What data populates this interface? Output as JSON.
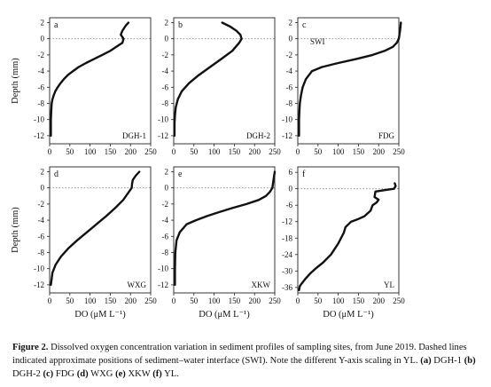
{
  "figure": {
    "ylabel": "Depth (mm)",
    "xlabel": "DO (μM L⁻¹)",
    "swi_label": "SWI"
  },
  "caption": {
    "lead": "Figure 2.",
    "text": "Dissolved oxygen concentration variation in sediment profiles of sampling sites, from June 2019. Dashed lines indicated approximate positions of sediment–water interface (SWI). Note the different Y-axis scaling in YL.",
    "items": [
      {
        "key": "(a)",
        "site": "DGH-1"
      },
      {
        "key": "(b)",
        "site": "DGH-2"
      },
      {
        "key": "(c)",
        "site": "FDG"
      },
      {
        "key": "(d)",
        "site": "WXG"
      },
      {
        "key": "(e)",
        "site": "XKW"
      },
      {
        "key": "(f)",
        "site": "YL"
      }
    ]
  },
  "chart_data": [
    {
      "type": "line",
      "panel": "a",
      "site": "DGH-1",
      "xlim": [
        0,
        250
      ],
      "ylim": [
        -13,
        2.6
      ],
      "xticks": [
        0,
        50,
        100,
        150,
        200,
        250
      ],
      "yticks": [
        2,
        0,
        -2,
        -4,
        -6,
        -8,
        -10,
        -12
      ],
      "swi_depth": 0,
      "x": [
        195,
        188,
        180,
        176,
        183,
        180,
        165,
        150,
        130,
        110,
        90,
        72,
        58,
        45,
        35,
        27,
        20,
        14,
        10,
        7,
        5,
        4,
        3,
        3
      ],
      "y": [
        2,
        1.6,
        1,
        0.5,
        0,
        -0.5,
        -1,
        -1.5,
        -2,
        -2.5,
        -3,
        -3.5,
        -4,
        -4.5,
        -5,
        -5.5,
        -6,
        -6.5,
        -7,
        -7.5,
        -8,
        -9,
        -10,
        -12
      ]
    },
    {
      "type": "line",
      "panel": "b",
      "site": "DGH-2",
      "xlim": [
        0,
        250
      ],
      "ylim": [
        -13,
        2.6
      ],
      "xticks": [
        0,
        50,
        100,
        150,
        200,
        250
      ],
      "yticks": [
        2,
        0,
        -2,
        -4,
        -6,
        -8,
        -10,
        -12
      ],
      "swi_depth": 0,
      "x": [
        120,
        140,
        155,
        165,
        168,
        162,
        145,
        118,
        90,
        62,
        38,
        20,
        10,
        5,
        3,
        2,
        2,
        2
      ],
      "y": [
        2,
        1.5,
        1,
        0.5,
        0,
        -0.5,
        -1.5,
        -2.5,
        -3.5,
        -4.5,
        -5.5,
        -6.5,
        -7.5,
        -8.5,
        -9.5,
        -10.5,
        -11.5,
        -12
      ]
    },
    {
      "type": "line",
      "panel": "c",
      "site": "FDG",
      "xlim": [
        0,
        250
      ],
      "ylim": [
        -13,
        2.6
      ],
      "xticks": [
        0,
        50,
        100,
        150,
        200,
        250
      ],
      "yticks": [
        2,
        0,
        -2,
        -4,
        -6,
        -8,
        -10,
        -12
      ],
      "swi_depth": 0,
      "x": [
        255,
        253,
        250,
        245,
        235,
        215,
        185,
        145,
        100,
        60,
        35,
        20,
        12,
        8,
        5,
        4,
        3,
        3
      ],
      "y": [
        2,
        1,
        0,
        -0.5,
        -1,
        -1.5,
        -2,
        -2.5,
        -3,
        -3.5,
        -4,
        -5,
        -6,
        -7,
        -8,
        -9,
        -10,
        -12
      ]
    },
    {
      "type": "line",
      "panel": "d",
      "site": "WXG",
      "xlim": [
        0,
        250
      ],
      "ylim": [
        -13,
        2.6
      ],
      "xticks": [
        0,
        50,
        100,
        150,
        200,
        250
      ],
      "yticks": [
        2,
        0,
        -2,
        -4,
        -6,
        -8,
        -10,
        -12
      ],
      "swi_depth": 0,
      "x": [
        222,
        213,
        206,
        204,
        203,
        196,
        182,
        162,
        140,
        116,
        92,
        68,
        46,
        28,
        15,
        7,
        3
      ],
      "y": [
        2,
        1.5,
        1,
        0.5,
        0,
        -0.5,
        -1.5,
        -2.5,
        -3.5,
        -4.5,
        -5.5,
        -6.5,
        -7.5,
        -8.5,
        -9.5,
        -10.5,
        -12
      ]
    },
    {
      "type": "line",
      "panel": "e",
      "site": "XKW",
      "xlim": [
        0,
        250
      ],
      "ylim": [
        -13,
        2.6
      ],
      "xticks": [
        0,
        50,
        100,
        150,
        200,
        250
      ],
      "yticks": [
        2,
        0,
        -2,
        -4,
        -6,
        -8,
        -10,
        -12
      ],
      "swi_depth": 0,
      "x": [
        250,
        247,
        244,
        238,
        228,
        210,
        180,
        145,
        112,
        82,
        55,
        32,
        15,
        7,
        4,
        3,
        3
      ],
      "y": [
        2,
        1,
        0,
        -0.5,
        -1,
        -1.5,
        -2,
        -2.5,
        -3,
        -3.5,
        -4,
        -4.5,
        -5.5,
        -6.5,
        -8,
        -10,
        -12
      ]
    },
    {
      "type": "line",
      "panel": "f",
      "site": "YL",
      "xlim": [
        0,
        250
      ],
      "ylim": [
        -38,
        8
      ],
      "xticks": [
        0,
        50,
        100,
        150,
        200,
        250
      ],
      "yticks": [
        6,
        0,
        -6,
        -12,
        -18,
        -24,
        -30,
        -36
      ],
      "swi_depth": 0,
      "x": [
        240,
        242,
        238,
        215,
        192,
        190,
        200,
        195,
        185,
        180,
        165,
        150,
        132,
        118,
        114,
        100,
        82,
        62,
        45,
        30,
        18,
        10,
        5,
        3
      ],
      "y": [
        2,
        1,
        0,
        -0.5,
        -1,
        -3,
        -4,
        -5,
        -6,
        -8,
        -10,
        -11,
        -12,
        -14,
        -16,
        -20,
        -24,
        -27,
        -29,
        -31,
        -33,
        -34.5,
        -35.5,
        -37
      ]
    }
  ]
}
